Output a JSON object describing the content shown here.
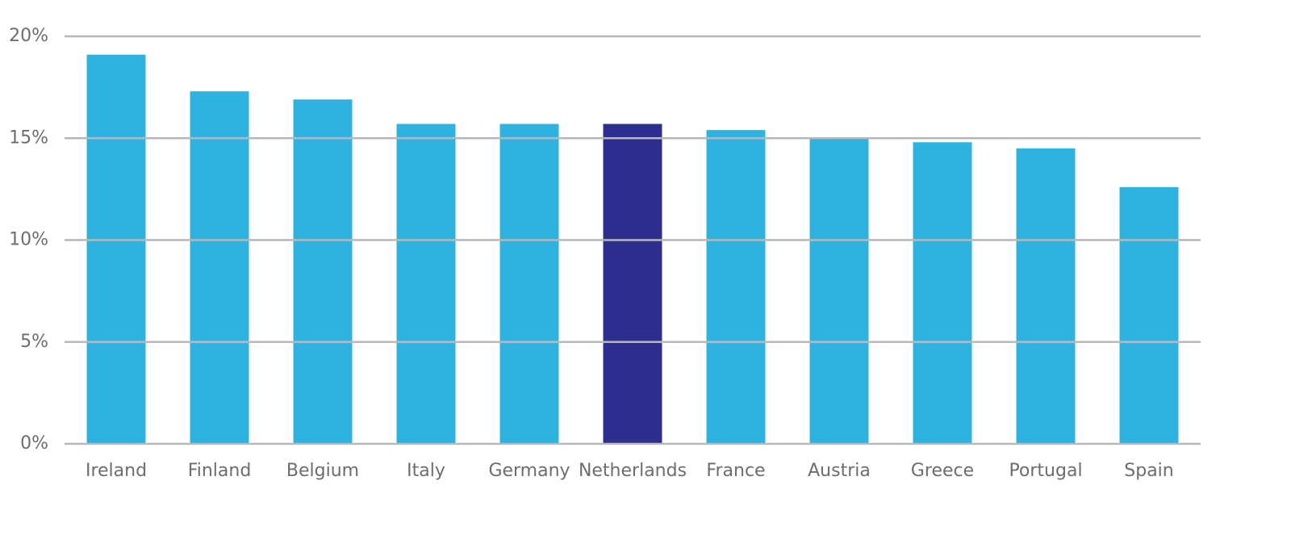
{
  "chart_data": {
    "type": "bar",
    "categories": [
      "Ireland",
      "Finland",
      "Belgium",
      "Italy",
      "Germany",
      "Netherlands",
      "France",
      "Austria",
      "Greece",
      "Portugal",
      "Spain"
    ],
    "values": [
      19.1,
      17.3,
      16.9,
      15.7,
      15.7,
      15.7,
      15.4,
      15.0,
      14.8,
      14.5,
      12.6
    ],
    "colors": [
      "#2eb2e0",
      "#2eb2e0",
      "#2eb2e0",
      "#2eb2e0",
      "#2eb2e0",
      "#2e2e8f",
      "#2eb2e0",
      "#2eb2e0",
      "#2eb2e0",
      "#2eb2e0",
      "#2eb2e0"
    ],
    "ylim": [
      0,
      20
    ],
    "yticks": [
      {
        "value": 0,
        "label": "0%"
      },
      {
        "value": 5,
        "label": "5%"
      },
      {
        "value": 10,
        "label": "10%"
      },
      {
        "value": 15,
        "label": "15%"
      },
      {
        "value": 20,
        "label": "20%"
      }
    ],
    "grid": true
  }
}
